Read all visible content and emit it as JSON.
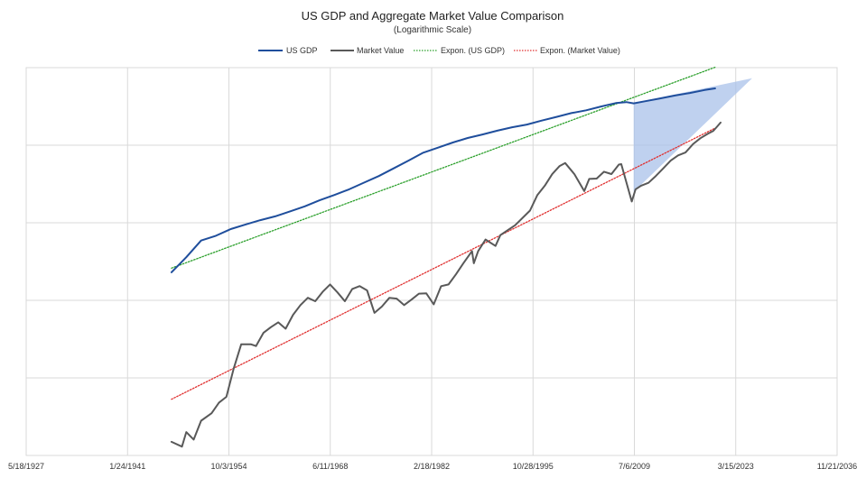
{
  "chart_data": {
    "type": "line",
    "title": "US GDP and Aggregate Market Value Comparison",
    "subtitle": "(Logarithmic  Scale)",
    "y_scale": "log",
    "grid": {
      "x": true,
      "y": true
    },
    "legend_position": "top-center",
    "x_ticks": [
      "5/18/1927",
      "1/24/1941",
      "10/3/1954",
      "6/11/1968",
      "2/18/1982",
      "10/28/1995",
      "7/6/2009",
      "3/15/2023",
      "11/21/2036"
    ],
    "xlim": [
      "1927-05-18",
      "2036-11-21"
    ],
    "y_tick_labels_visible": false,
    "legend": [
      {
        "name": "US GDP",
        "color": "#1f4e9c",
        "style": "solid"
      },
      {
        "name": "Market Value",
        "color": "#595959",
        "style": "solid"
      },
      {
        "name": "Expon. (US GDP)",
        "color": "#2ca02c",
        "style": "dotted"
      },
      {
        "name": "Expon. (Market Value)",
        "color": "#e03030",
        "style": "dotted"
      }
    ],
    "series": [
      {
        "name": "US GDP",
        "color": "#1f4e9c",
        "points": [
          [
            "1947-01-01",
            0.23
          ],
          [
            "1949-01-01",
            0.36
          ],
          [
            "1951-01-01",
            0.59
          ],
          [
            "1953-01-01",
            0.68
          ],
          [
            "1955-01-01",
            0.83
          ],
          [
            "1957-01-01",
            0.95
          ],
          [
            "1959-01-01",
            1.08
          ],
          [
            "1961-01-01",
            1.21
          ],
          [
            "1963-01-01",
            1.4
          ],
          [
            "1965-01-01",
            1.63
          ],
          [
            "1967-01-01",
            1.95
          ],
          [
            "1969-01-01",
            2.28
          ],
          [
            "1971-01-01",
            2.7
          ],
          [
            "1973-01-01",
            3.29
          ],
          [
            "1975-01-01",
            4.0
          ],
          [
            "1977-01-01",
            5.02
          ],
          [
            "1979-01-01",
            6.33
          ],
          [
            "1981-01-01",
            8.0
          ],
          [
            "1983-01-01",
            9.3
          ],
          [
            "1985-01-01",
            10.84
          ],
          [
            "1987-01-01",
            12.4
          ],
          [
            "1989-01-01",
            13.77
          ],
          [
            "1991-01-01",
            15.37
          ],
          [
            "1993-01-01",
            17.03
          ],
          [
            "1995-01-01",
            18.46
          ],
          [
            "1997-01-01",
            20.77
          ],
          [
            "1999-01-01",
            23.17
          ],
          [
            "2001-01-01",
            25.97
          ],
          [
            "2003-01-01",
            28.15
          ],
          [
            "2005-01-01",
            31.58
          ],
          [
            "2007-01-01",
            34.96
          ],
          [
            "2008-06-01",
            36.0
          ],
          [
            "2009-06-01",
            34.65
          ],
          [
            "2011-01-01",
            36.9
          ],
          [
            "2013-01-01",
            40.15
          ],
          [
            "2015-01-01",
            43.77
          ],
          [
            "2017-01-01",
            47.11
          ],
          [
            "2019-01-01",
            51.45
          ],
          [
            "2020-06-01",
            54.02
          ]
        ]
      },
      {
        "name": "Market Value",
        "color": "#595959",
        "points": [
          [
            "1947-01-01",
            0.0015
          ],
          [
            "1948-06-01",
            0.0013
          ],
          [
            "1949-01-01",
            0.002
          ],
          [
            "1950-01-01",
            0.0016
          ],
          [
            "1951-01-01",
            0.0028
          ],
          [
            "1952-06-01",
            0.0035
          ],
          [
            "1953-06-01",
            0.0048
          ],
          [
            "1954-06-01",
            0.0057
          ],
          [
            "1955-06-01",
            0.0133
          ],
          [
            "1956-06-01",
            0.0271
          ],
          [
            "1957-10-01",
            0.0271
          ],
          [
            "1958-06-01",
            0.0257
          ],
          [
            "1959-06-01",
            0.038
          ],
          [
            "1960-06-01",
            0.045
          ],
          [
            "1961-06-01",
            0.0521
          ],
          [
            "1962-06-01",
            0.043
          ],
          [
            "1963-06-01",
            0.0649
          ],
          [
            "1964-06-01",
            0.0867
          ],
          [
            "1965-06-01",
            0.1079
          ],
          [
            "1966-06-01",
            0.0974
          ],
          [
            "1967-06-01",
            0.1286
          ],
          [
            "1968-06-01",
            0.1603
          ],
          [
            "1969-06-01",
            0.1266
          ],
          [
            "1970-06-01",
            0.0974
          ],
          [
            "1971-06-01",
            0.14
          ],
          [
            "1972-06-01",
            0.1525
          ],
          [
            "1973-06-01",
            0.1342
          ],
          [
            "1974-06-01",
            0.069
          ],
          [
            "1975-06-01",
            0.0832
          ],
          [
            "1976-06-01",
            0.1075
          ],
          [
            "1977-06-01",
            0.1052
          ],
          [
            "1978-06-01",
            0.0867
          ],
          [
            "1979-06-01",
            0.1021
          ],
          [
            "1980-06-01",
            0.1219
          ],
          [
            "1981-06-01",
            0.1228
          ],
          [
            "1982-06-01",
            0.0886
          ],
          [
            "1983-06-01",
            0.1523
          ],
          [
            "1984-06-01",
            0.1603
          ],
          [
            "1985-06-01",
            0.2165
          ],
          [
            "1986-06-01",
            0.3008
          ],
          [
            "1987-08-01",
            0.431
          ],
          [
            "1987-11-01",
            0.3008
          ],
          [
            "1988-06-01",
            0.431
          ],
          [
            "1989-06-01",
            0.607
          ],
          [
            "1990-10-01",
            0.502
          ],
          [
            "1991-06-01",
            0.693
          ],
          [
            "1993-06-01",
            0.93
          ],
          [
            "1995-06-01",
            1.436
          ],
          [
            "1996-06-01",
            2.279
          ],
          [
            "1997-06-01",
            3.008
          ],
          [
            "1998-06-01",
            4.237
          ],
          [
            "1999-06-01",
            5.388
          ],
          [
            "2000-03-01",
            5.893
          ],
          [
            "2001-06-01",
            4.237
          ],
          [
            "2002-10-01",
            2.559
          ],
          [
            "2003-06-01",
            3.673
          ],
          [
            "2004-06-01",
            3.71
          ],
          [
            "2005-06-01",
            4.555
          ],
          [
            "2006-06-01",
            4.25
          ],
          [
            "2007-06-01",
            5.623
          ],
          [
            "2007-10-01",
            5.7
          ],
          [
            "2009-03-01",
            1.879
          ],
          [
            "2009-09-01",
            2.7
          ],
          [
            "2010-06-01",
            3.008
          ],
          [
            "2011-06-01",
            3.274
          ],
          [
            "2012-06-01",
            4.01
          ],
          [
            "2013-06-01",
            5.02
          ],
          [
            "2014-06-01",
            6.33
          ],
          [
            "2015-06-01",
            7.38
          ],
          [
            "2016-06-01",
            8.06
          ],
          [
            "2017-06-01",
            10.3
          ],
          [
            "2018-06-01",
            12.3
          ],
          [
            "2019-06-01",
            14.0
          ],
          [
            "2020-03-01",
            15.3
          ],
          [
            "2020-09-01",
            17.3
          ],
          [
            "2021-03-01",
            19.6
          ]
        ]
      },
      {
        "name": "Expon. (US GDP)",
        "color": "#2ca02c",
        "points": [
          [
            "1947-01-01",
            0.26
          ],
          [
            "2020-06-01",
            101.2
          ]
        ]
      },
      {
        "name": "Expon. (Market Value)",
        "color": "#e03030",
        "points": [
          [
            "1947-01-01",
            0.0053
          ],
          [
            "2020-06-01",
            16.59
          ]
        ]
      }
    ],
    "shaded_wedge": {
      "color": "#a9c1e9",
      "points": [
        [
          "2009-06-01",
          35.0
        ],
        [
          "2025-06-01",
          73.0
        ],
        [
          "2009-06-01",
          2.5
        ]
      ]
    }
  }
}
